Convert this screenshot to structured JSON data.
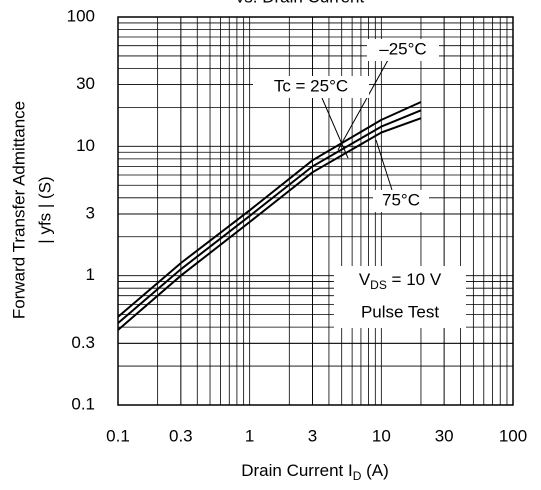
{
  "chart_data": {
    "type": "line",
    "title": "vs. Drain Current",
    "x_label": {
      "text": "Drain Current I",
      "sub": "D",
      "rest": "  (A)"
    },
    "y_label": [
      "Forward Transfer Admittance",
      "| yfs |  (S)"
    ],
    "log_x": true,
    "log_y": true,
    "grid": true,
    "xlim": [
      0.1,
      100
    ],
    "xticks": [
      0.1,
      0.3,
      1,
      3,
      10,
      30,
      100
    ],
    "ylim": [
      0.1,
      100
    ],
    "yticks": [
      0.1,
      0.3,
      1,
      3,
      10,
      30,
      100
    ],
    "series": [
      {
        "name": "–25°C",
        "color": "#000000",
        "x": [
          0.1,
          0.3,
          1,
          3,
          10,
          20
        ],
        "values": [
          0.48,
          1.25,
          3.2,
          7.8,
          16,
          22
        ]
      },
      {
        "name": "Tc = 25°C",
        "color": "#000000",
        "x": [
          0.1,
          0.3,
          1,
          3,
          10,
          20
        ],
        "values": [
          0.43,
          1.12,
          2.9,
          7.0,
          14.2,
          19
        ]
      },
      {
        "name": "75°C",
        "color": "#000000",
        "x": [
          0.1,
          0.3,
          1,
          3,
          10,
          20
        ],
        "values": [
          0.38,
          1.0,
          2.6,
          6.3,
          12.8,
          16.5
        ]
      }
    ],
    "annotations": [
      {
        "text": "V",
        "sub": "DS",
        "rest": " = 10 V"
      },
      {
        "text": "Pulse Test"
      }
    ]
  }
}
